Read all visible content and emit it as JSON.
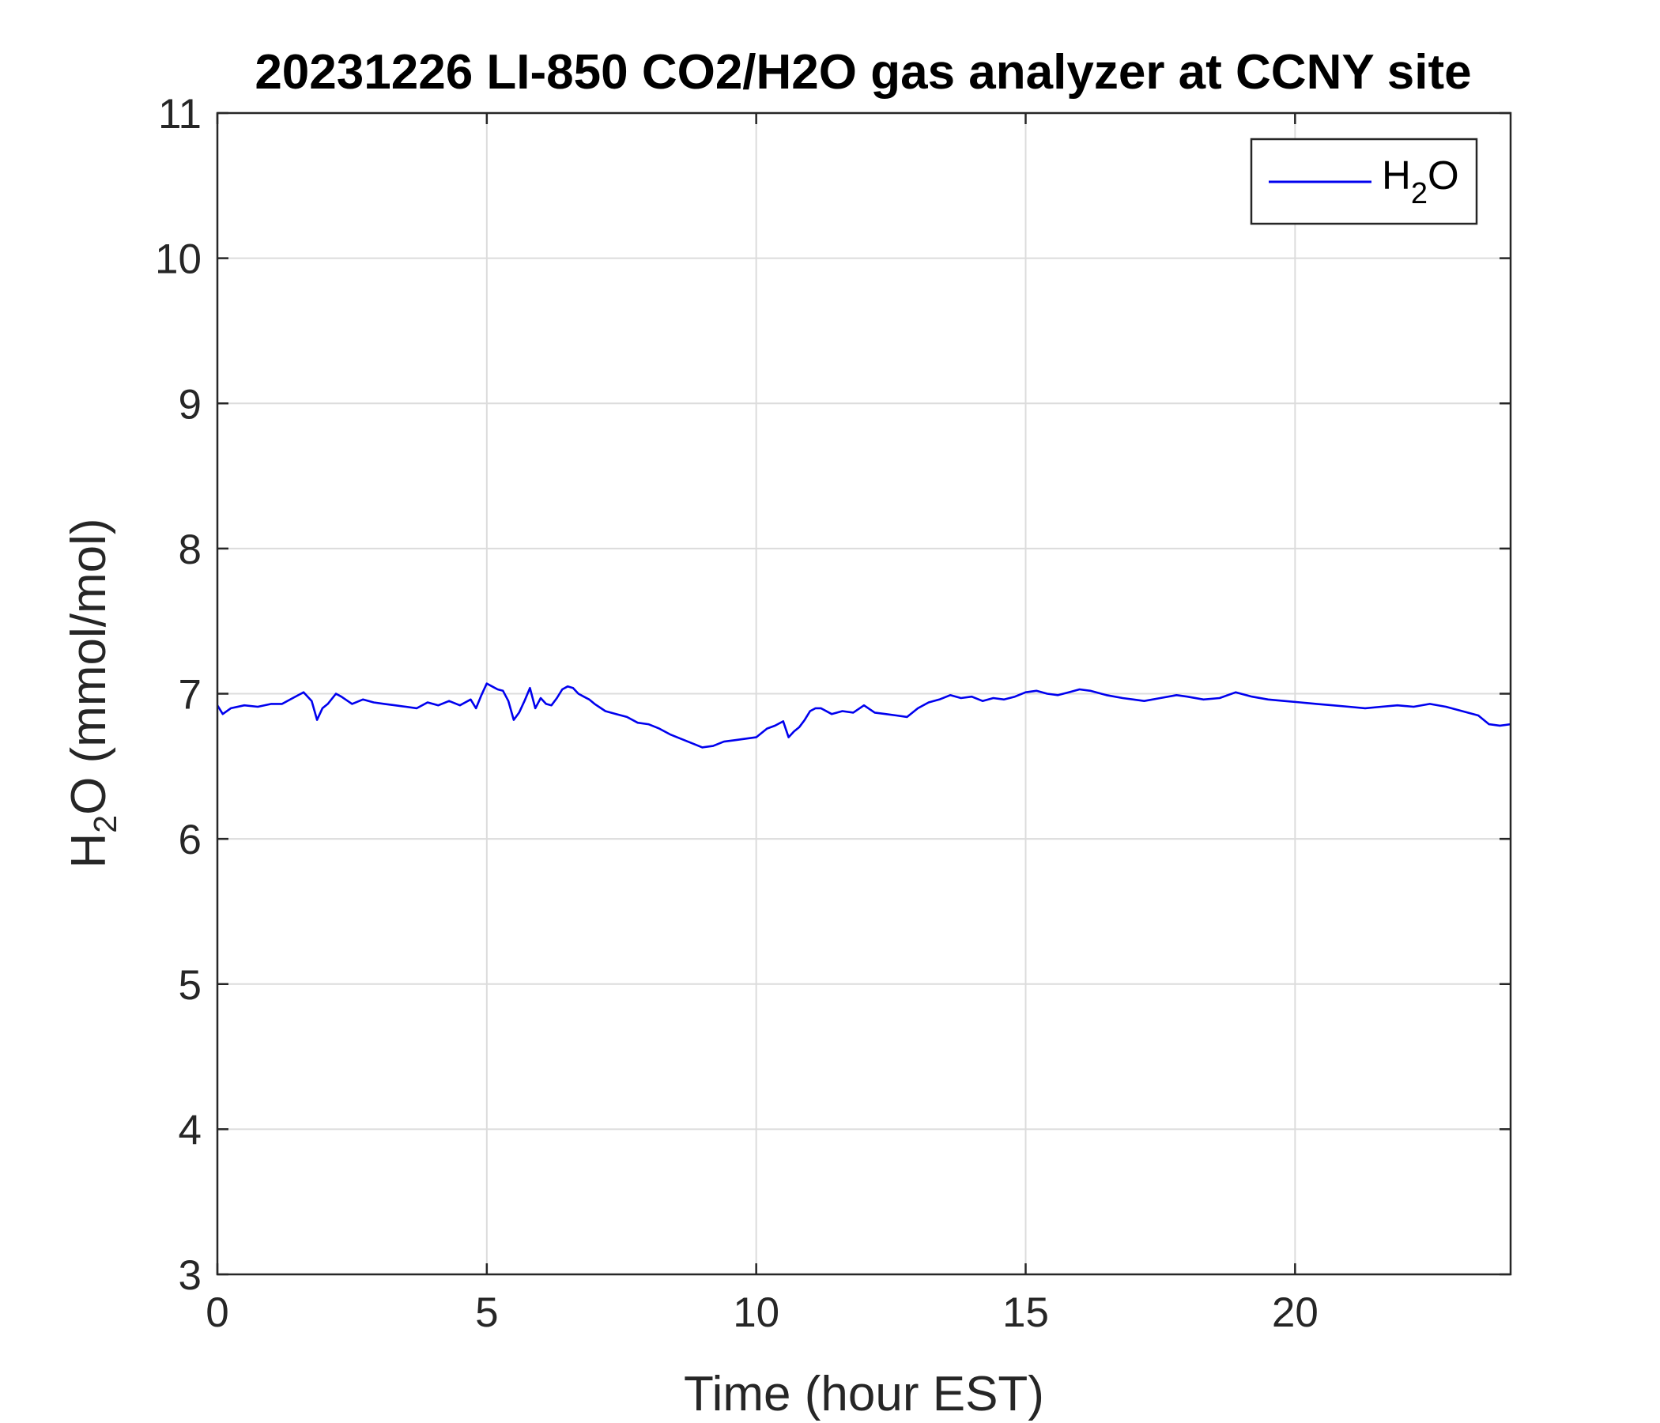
{
  "chart_data": {
    "type": "line",
    "title": "20231226 LI-850 CO2/H2O gas analyzer at CCNY site",
    "xlabel": "Time (hour EST)",
    "ylabel": {
      "main": "H",
      "sub": "2",
      "rest": "O (mmol/mol)"
    },
    "xlim": [
      0,
      24
    ],
    "ylim": [
      3,
      11
    ],
    "xticks": [
      0,
      5,
      10,
      15,
      20
    ],
    "yticks": [
      3,
      4,
      5,
      6,
      7,
      8,
      9,
      10,
      11
    ],
    "grid": true,
    "legend_position": "top-right",
    "series": [
      {
        "name": {
          "main": "H",
          "sub": "2",
          "rest": "O"
        },
        "color": "#0000ee",
        "x": [
          0.0,
          0.1,
          0.25,
          0.5,
          0.75,
          1.0,
          1.2,
          1.4,
          1.6,
          1.75,
          1.85,
          1.95,
          2.05,
          2.2,
          2.3,
          2.5,
          2.7,
          2.9,
          3.1,
          3.3,
          3.5,
          3.7,
          3.9,
          4.1,
          4.3,
          4.5,
          4.7,
          4.8,
          4.9,
          5.0,
          5.1,
          5.2,
          5.3,
          5.4,
          5.5,
          5.6,
          5.7,
          5.8,
          5.9,
          6.0,
          6.1,
          6.2,
          6.3,
          6.4,
          6.5,
          6.6,
          6.7,
          6.8,
          6.9,
          7.0,
          7.2,
          7.4,
          7.6,
          7.8,
          8.0,
          8.2,
          8.4,
          8.6,
          8.8,
          9.0,
          9.2,
          9.4,
          9.6,
          9.8,
          10.0,
          10.1,
          10.2,
          10.35,
          10.5,
          10.6,
          10.7,
          10.8,
          10.9,
          11.0,
          11.1,
          11.2,
          11.4,
          11.6,
          11.8,
          12.0,
          12.2,
          12.4,
          12.6,
          12.8,
          13.0,
          13.2,
          13.4,
          13.6,
          13.8,
          14.0,
          14.2,
          14.4,
          14.6,
          14.8,
          15.0,
          15.2,
          15.4,
          15.6,
          15.8,
          16.0,
          16.2,
          16.5,
          16.8,
          17.0,
          17.2,
          17.5,
          17.8,
          18.0,
          18.3,
          18.6,
          18.9,
          19.2,
          19.5,
          19.8,
          20.1,
          20.4,
          20.7,
          21.0,
          21.3,
          21.6,
          21.9,
          22.2,
          22.5,
          22.8,
          23.1,
          23.4,
          23.6,
          23.8,
          24.0
        ],
        "y": [
          6.92,
          6.86,
          6.9,
          6.92,
          6.91,
          6.93,
          6.93,
          6.97,
          7.01,
          6.95,
          6.82,
          6.9,
          6.93,
          7.0,
          6.98,
          6.93,
          6.96,
          6.94,
          6.93,
          6.92,
          6.91,
          6.9,
          6.94,
          6.92,
          6.95,
          6.92,
          6.96,
          6.9,
          6.99,
          7.07,
          7.05,
          7.03,
          7.02,
          6.95,
          6.82,
          6.87,
          6.95,
          7.04,
          6.9,
          6.97,
          6.93,
          6.92,
          6.97,
          7.03,
          7.05,
          7.04,
          7.0,
          6.98,
          6.96,
          6.93,
          6.88,
          6.86,
          6.84,
          6.8,
          6.79,
          6.76,
          6.72,
          6.69,
          6.66,
          6.63,
          6.64,
          6.67,
          6.68,
          6.69,
          6.7,
          6.73,
          6.76,
          6.78,
          6.81,
          6.7,
          6.74,
          6.77,
          6.82,
          6.88,
          6.9,
          6.9,
          6.86,
          6.88,
          6.87,
          6.92,
          6.87,
          6.86,
          6.85,
          6.84,
          6.9,
          6.94,
          6.96,
          6.99,
          6.97,
          6.98,
          6.95,
          6.97,
          6.96,
          6.98,
          7.01,
          7.02,
          7.0,
          6.99,
          7.01,
          7.03,
          7.02,
          6.99,
          6.97,
          6.96,
          6.95,
          6.97,
          6.99,
          6.98,
          6.96,
          6.97,
          7.01,
          6.98,
          6.96,
          6.95,
          6.94,
          6.93,
          6.92,
          6.91,
          6.9,
          6.91,
          6.92,
          6.91,
          6.93,
          6.91,
          6.88,
          6.85,
          6.79,
          6.78,
          6.79
        ]
      }
    ]
  }
}
